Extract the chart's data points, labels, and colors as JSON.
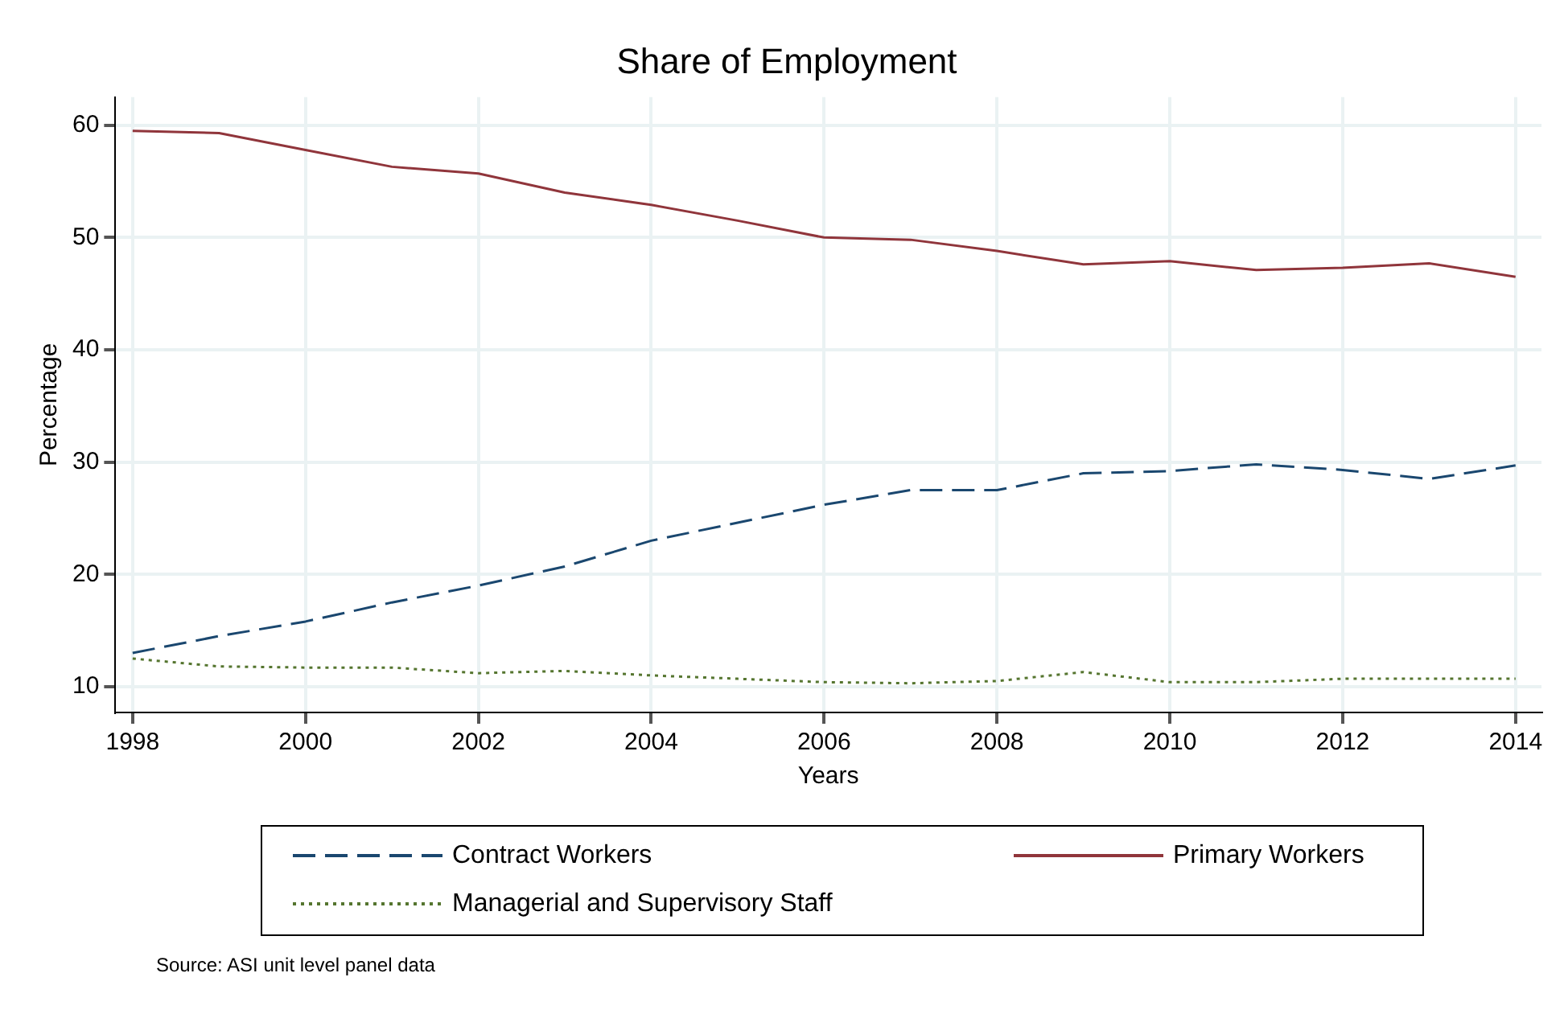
{
  "chart_data": {
    "type": "line",
    "title": "Share of Employment",
    "xlabel": "Years",
    "ylabel": "Percentage",
    "x": [
      1998,
      1999,
      2000,
      2001,
      2002,
      2003,
      2004,
      2005,
      2006,
      2007,
      2008,
      2009,
      2010,
      2011,
      2012,
      2013,
      2014
    ],
    "series": [
      {
        "name": "Contract Workers",
        "color": "#1a476f",
        "line_style": "dashed",
        "values": [
          13.0,
          14.5,
          15.8,
          17.5,
          19.0,
          20.7,
          23.0,
          24.6,
          26.2,
          27.5,
          27.5,
          29.0,
          29.2,
          29.8,
          29.3,
          28.5,
          29.7
        ]
      },
      {
        "name": "Primary Workers",
        "color": "#90353b",
        "line_style": "solid",
        "values": [
          59.5,
          59.3,
          57.8,
          56.3,
          55.7,
          54.0,
          52.9,
          51.5,
          50.0,
          49.8,
          48.8,
          47.6,
          47.9,
          47.1,
          47.3,
          47.7,
          46.5
        ]
      },
      {
        "name": "Managerial and Supervisory Staff",
        "color": "#55752f",
        "line_style": "dotted",
        "values": [
          12.5,
          11.8,
          11.7,
          11.7,
          11.2,
          11.4,
          11.0,
          10.7,
          10.4,
          10.3,
          10.5,
          11.3,
          10.4,
          10.4,
          10.7,
          10.7,
          10.7
        ]
      }
    ],
    "xlim": [
      1997.8,
      2014.3
    ],
    "xticks": [
      1998,
      2000,
      2002,
      2004,
      2006,
      2008,
      2010,
      2012,
      2014
    ],
    "ylim": [
      7.7,
      62.5
    ],
    "yticks": [
      10,
      20,
      30,
      40,
      50,
      60
    ],
    "grid": true,
    "legend": "bottom",
    "marker": "none",
    "annotations": [
      "Source: ASI unit level panel data"
    ]
  }
}
